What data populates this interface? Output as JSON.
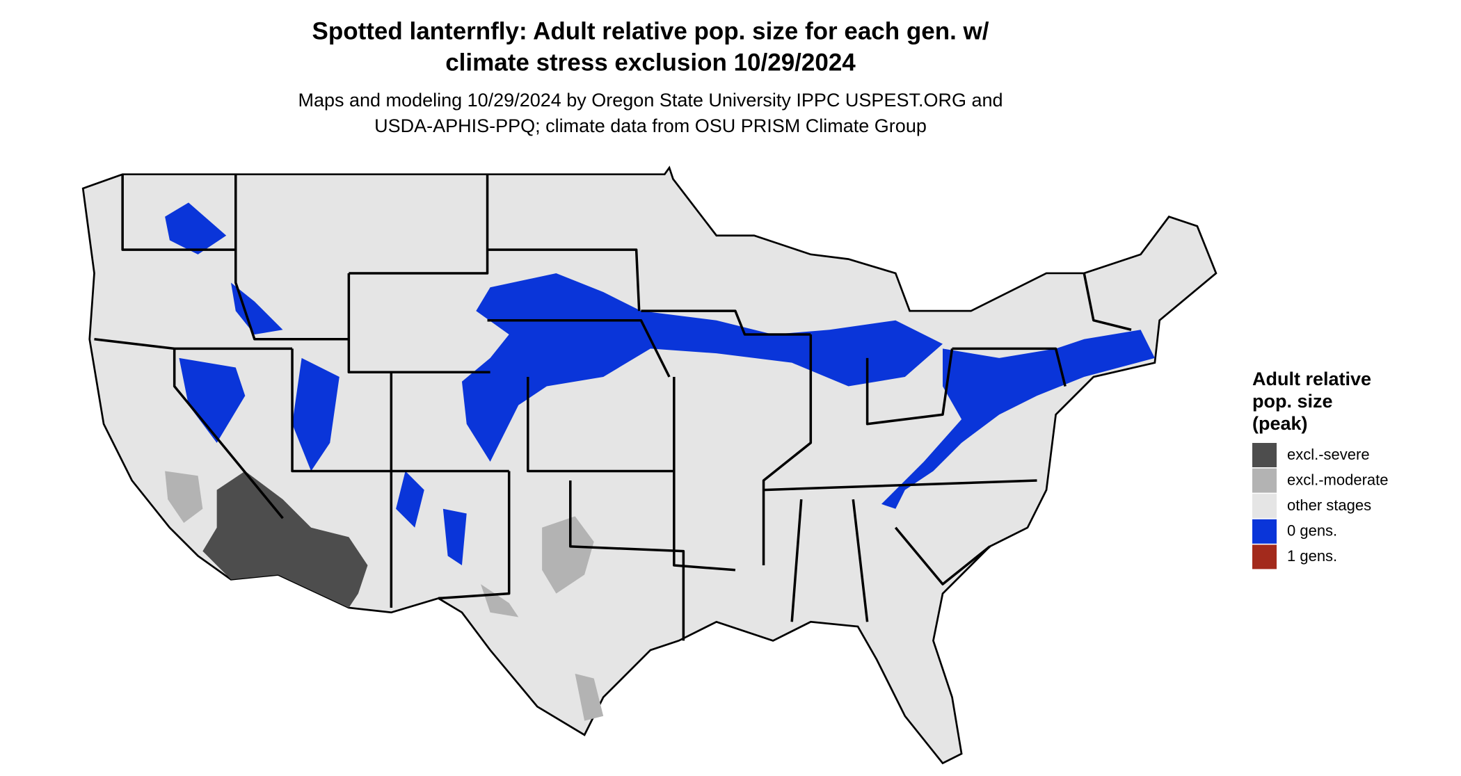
{
  "header": {
    "title": [
      "Spotted lanternfly: Adult relative pop. size for each gen. w/",
      "climate stress exclusion 10/29/2024"
    ],
    "subtitle": [
      "Maps and modeling 10/29/2024 by Oregon State University IPPC USPEST.ORG and",
      "USDA-APHIS-PPQ; climate data from OSU PRISM Climate Group"
    ]
  },
  "legend": {
    "title": [
      "Adult relative",
      "pop. size",
      "(peak)"
    ],
    "items": [
      {
        "label": "excl.-severe",
        "color": "#4d4d4d"
      },
      {
        "label": "excl.-moderate",
        "color": "#b3b3b3"
      },
      {
        "label": "other stages",
        "color": "#e5e5e5"
      },
      {
        "label": "0 gens.",
        "color": "#0a35d9"
      },
      {
        "label": "1 gens.",
        "color": "#a32a1c"
      }
    ]
  }
}
